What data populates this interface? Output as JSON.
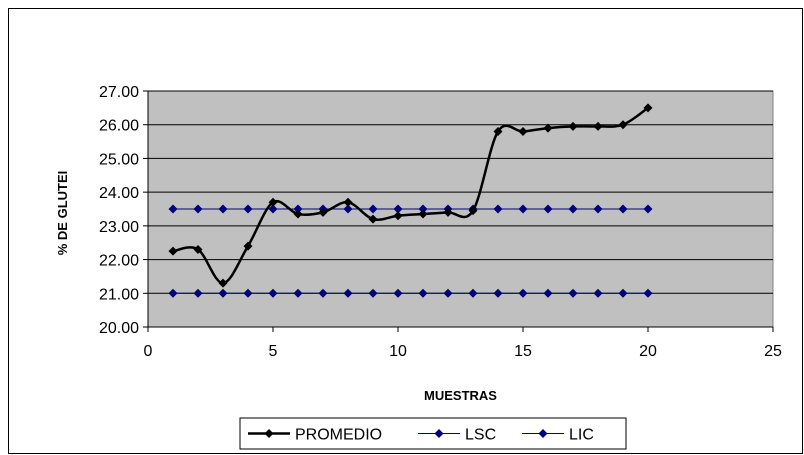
{
  "chart_data": {
    "type": "line",
    "title": "",
    "xlabel": "MUESTRAS",
    "ylabel": "% DE GLUTEI",
    "xlim": [
      0,
      25
    ],
    "ylim": [
      20,
      27
    ],
    "x_ticks": [
      0,
      5,
      10,
      15,
      20,
      25
    ],
    "x_tick_labels": [
      "0",
      "5",
      "10",
      "15",
      "20",
      "25"
    ],
    "y_ticks": [
      20,
      21,
      22,
      23,
      24,
      25,
      26,
      27
    ],
    "y_tick_labels": [
      "20.00",
      "21.00",
      "22.00",
      "23.00",
      "24.00",
      "25.00",
      "26.00",
      "27.00"
    ],
    "grid": "horizontal",
    "plot_background": "#c0c0c0",
    "legend_position": "bottom",
    "x": [
      1,
      2,
      3,
      4,
      5,
      6,
      7,
      8,
      9,
      10,
      11,
      12,
      13,
      14,
      15,
      16,
      17,
      18,
      19,
      20
    ],
    "series": [
      {
        "name": "PROMEDIO",
        "color": "#000000",
        "smooth": true,
        "values": [
          22.25,
          22.3,
          21.3,
          22.4,
          23.7,
          23.35,
          23.4,
          23.7,
          23.2,
          23.3,
          23.35,
          23.4,
          23.45,
          25.8,
          25.8,
          25.9,
          25.95,
          25.95,
          26.0,
          26.5
        ]
      },
      {
        "name": "LSC",
        "color": "#000080",
        "smooth": false,
        "values": [
          23.5,
          23.5,
          23.5,
          23.5,
          23.5,
          23.5,
          23.5,
          23.5,
          23.5,
          23.5,
          23.5,
          23.5,
          23.5,
          23.5,
          23.5,
          23.5,
          23.5,
          23.5,
          23.5,
          23.5
        ]
      },
      {
        "name": "LIC",
        "color": "#000080",
        "smooth": false,
        "values": [
          21.0,
          21.0,
          21.0,
          21.0,
          21.0,
          21.0,
          21.0,
          21.0,
          21.0,
          21.0,
          21.0,
          21.0,
          21.0,
          21.0,
          21.0,
          21.0,
          21.0,
          21.0,
          21.0,
          21.0
        ]
      }
    ]
  }
}
